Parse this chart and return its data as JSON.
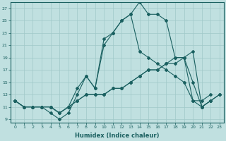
{
  "xlabel": "Humidex (Indice chaleur)",
  "bg_color": "#c0e0e0",
  "grid_color": "#a0c8c8",
  "line_color": "#1a6060",
  "xlim": [
    -0.5,
    23.5
  ],
  "ylim": [
    8.5,
    28.0
  ],
  "yticks": [
    9,
    11,
    13,
    15,
    17,
    19,
    21,
    23,
    25,
    27
  ],
  "xticks": [
    0,
    1,
    2,
    3,
    4,
    5,
    6,
    7,
    8,
    9,
    10,
    11,
    12,
    13,
    14,
    15,
    16,
    17,
    18,
    19,
    20,
    21,
    22,
    23
  ],
  "series": [
    {
      "x": [
        0,
        1,
        2,
        3,
        4,
        5,
        6,
        7,
        8,
        9,
        10,
        11,
        12,
        13,
        14,
        15,
        16,
        17,
        18,
        19,
        20,
        21,
        22
      ],
      "y": [
        12,
        11,
        11,
        11,
        11,
        10,
        11,
        14,
        16,
        14,
        22,
        23,
        25,
        26,
        28,
        26,
        26,
        25,
        19,
        19,
        12,
        12,
        13
      ]
    },
    {
      "x": [
        0,
        1,
        2,
        3,
        4,
        5,
        6,
        7,
        8,
        9,
        10,
        11,
        12,
        13,
        14,
        15,
        16,
        17,
        18,
        19,
        20,
        21,
        22
      ],
      "y": [
        12,
        11,
        11,
        11,
        10,
        9,
        10,
        13,
        16,
        14,
        21,
        23,
        25,
        26,
        20,
        19,
        18,
        17,
        16,
        15,
        12,
        11,
        12
      ]
    },
    {
      "x": [
        0,
        1,
        2,
        3,
        4,
        5,
        6,
        7,
        8,
        9,
        10,
        11,
        12,
        13,
        14,
        15,
        16,
        17,
        18,
        19,
        20,
        21,
        22,
        23
      ],
      "y": [
        12,
        11,
        11,
        11,
        11,
        10,
        11,
        12,
        13,
        13,
        13,
        14,
        14,
        15,
        16,
        17,
        17,
        18,
        18,
        19,
        15,
        11,
        12,
        13
      ]
    },
    {
      "x": [
        0,
        1,
        2,
        3,
        4,
        5,
        6,
        7,
        8,
        9,
        10,
        11,
        12,
        13,
        14,
        15,
        16,
        17,
        18,
        19,
        20,
        21,
        22,
        23
      ],
      "y": [
        12,
        11,
        11,
        11,
        11,
        10,
        11,
        12,
        13,
        13,
        13,
        14,
        14,
        15,
        16,
        17,
        17,
        18,
        19,
        19,
        20,
        11,
        12,
        13
      ]
    }
  ]
}
